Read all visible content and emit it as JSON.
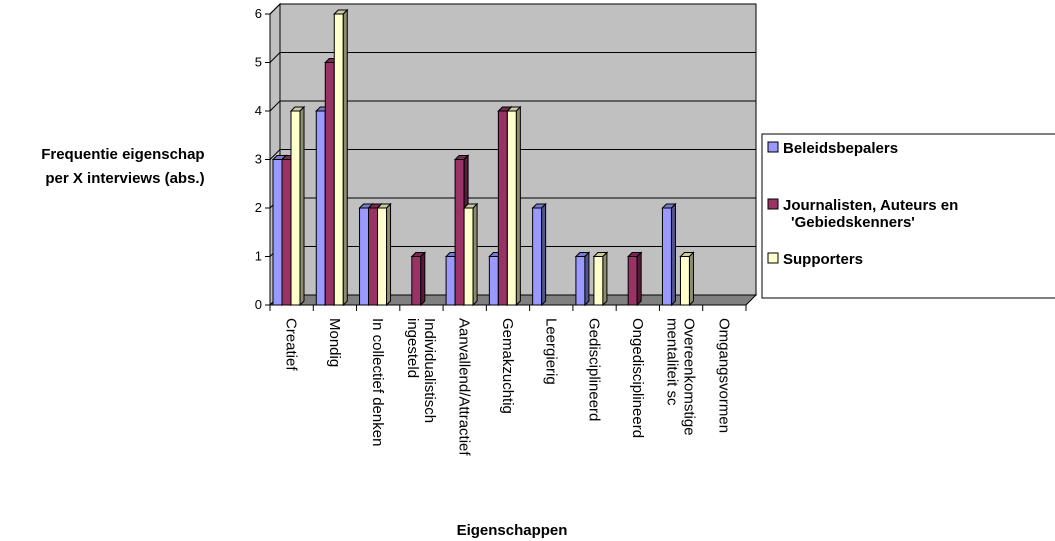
{
  "chart_data": {
    "type": "bar",
    "title": "",
    "xlabel": "Eigenschappen",
    "ylabel_lines": [
      "Frequentie eigenschap",
      "per X interviews (abs.)"
    ],
    "ylim": [
      0,
      6
    ],
    "yticks": [
      0,
      1,
      2,
      3,
      4,
      5,
      6
    ],
    "grid": true,
    "legend_position": "right",
    "categories": [
      [
        "Creatief"
      ],
      [
        "Mondig"
      ],
      [
        "In collectief denken"
      ],
      [
        "Individualistisch",
        "ingesteld"
      ],
      [
        "Aanvallend/Attractief"
      ],
      [
        "Gemakzuchtig"
      ],
      [
        "Leergierig"
      ],
      [
        "Gedisciplineerd"
      ],
      [
        "Ongedisciplineerd"
      ],
      [
        "Overeenkomstige",
        "mentaliteit sc"
      ],
      [
        "Omgangsvormen"
      ]
    ],
    "series": [
      {
        "name_lines": [
          "Beleidsbepalers"
        ],
        "color": "#9999ff",
        "values": [
          3,
          4,
          2,
          0,
          1,
          1,
          2,
          1,
          0,
          2,
          0
        ]
      },
      {
        "name_lines": [
          "Journalisten, Auteurs en",
          "'Gebiedskenners'"
        ],
        "color": "#993366",
        "values": [
          3,
          5,
          2,
          1,
          3,
          4,
          0,
          0,
          1,
          0,
          0
        ]
      },
      {
        "name_lines": [
          "Supporters"
        ],
        "color": "#ffffcc",
        "values": [
          4,
          6,
          2,
          0,
          2,
          4,
          0,
          1,
          0,
          1,
          0
        ]
      }
    ],
    "colors": {
      "wall": "#c0c0c0",
      "floor": "#808080",
      "gridline": "#000000"
    }
  }
}
